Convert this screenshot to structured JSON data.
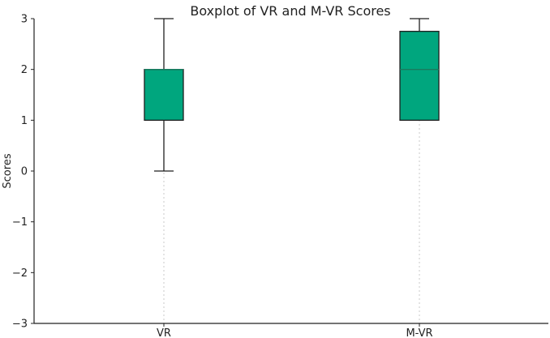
{
  "chart_data": {
    "type": "boxplot",
    "title": "Boxplot of VR and M-VR Scores",
    "xlabel": "",
    "ylabel": "Scores",
    "ylim": [
      -3,
      3
    ],
    "yticks": [
      -3,
      -2,
      -1,
      0,
      1,
      2,
      3
    ],
    "ytick_labels": [
      "−3",
      "−2",
      "−1",
      "0",
      "1",
      "2",
      "3"
    ],
    "grid": "x-only, dotted",
    "categories": [
      "VR",
      "M-VR"
    ],
    "boxes": [
      {
        "label": "VR",
        "whisker_low": 0,
        "q1": 1,
        "median": 2,
        "q3": 2,
        "whisker_high": 3
      },
      {
        "label": "M-VR",
        "whisker_low": 1,
        "q1": 1,
        "median": 2,
        "q3": 2.75,
        "whisker_high": 3
      }
    ],
    "colors": {
      "box_fill": "#00a67e",
      "box_edge": "#1f1f1f",
      "median": "#1a7a5e",
      "grid": "#c8c8c8"
    }
  }
}
